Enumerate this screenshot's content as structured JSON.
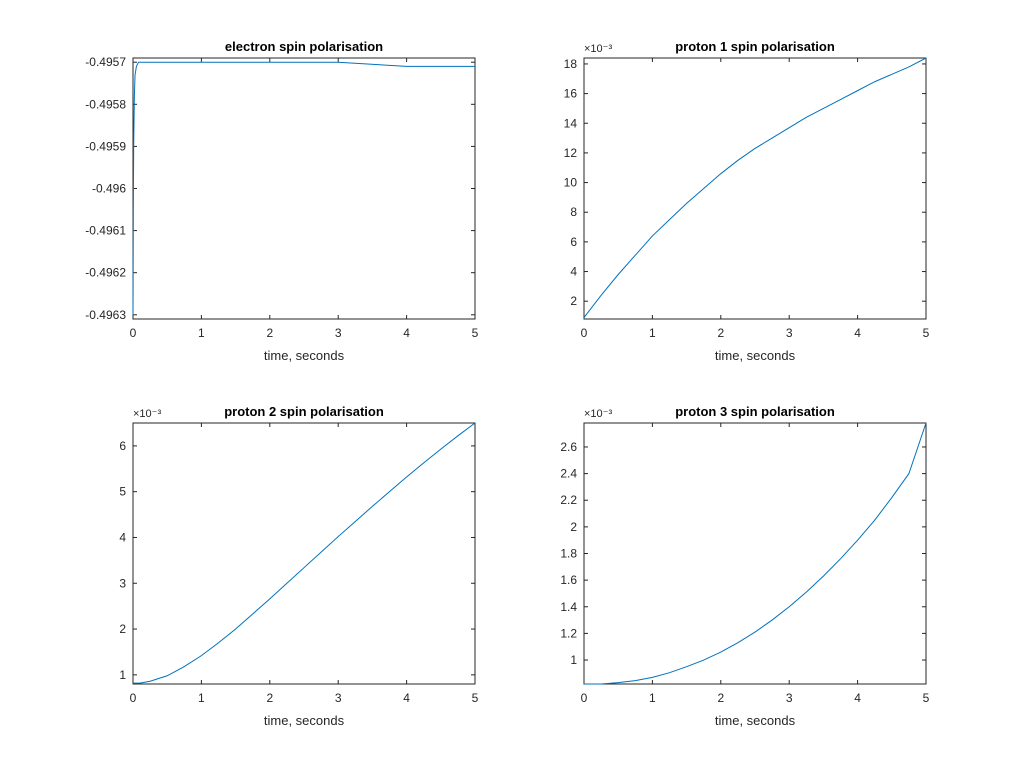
{
  "chart_data": [
    {
      "type": "line",
      "title": "electron spin polarisation",
      "xlabel": "time, seconds",
      "ylabel": "",
      "xlim": [
        0,
        5
      ],
      "ylim": [
        -0.49631,
        -0.49569
      ],
      "xticks": [
        0,
        1,
        2,
        3,
        4,
        5
      ],
      "xtick_labels": [
        "0",
        "1",
        "2",
        "3",
        "4",
        "5"
      ],
      "yticks": [
        -0.4963,
        -0.4962,
        -0.4961,
        -0.496,
        -0.4959,
        -0.4958,
        -0.4957
      ],
      "ytick_labels": [
        "-0.4963",
        "-0.4962",
        "-0.4961",
        "-0.496",
        "-0.4959",
        "-0.4958",
        "-0.4957"
      ],
      "exponent_label": "",
      "line_color": "#0072BD",
      "series": [
        {
          "x": [
            0,
            0.005,
            0.01,
            0.02,
            0.03,
            0.05,
            0.08,
            0.12,
            0.2,
            0.5,
            1,
            2,
            3,
            4,
            5
          ],
          "y": [
            -0.4963,
            -0.49605,
            -0.4959,
            -0.49578,
            -0.49573,
            -0.49571,
            -0.4957,
            -0.4957,
            -0.4957,
            -0.4957,
            -0.4957,
            -0.4957,
            -0.4957,
            -0.49571,
            -0.49571
          ]
        }
      ]
    },
    {
      "type": "line",
      "title": "proton 1 spin polarisation",
      "xlabel": "time, seconds",
      "ylabel": "",
      "xlim": [
        0,
        5
      ],
      "ylim": [
        0.8,
        18.4
      ],
      "xticks": [
        0,
        1,
        2,
        3,
        4,
        5
      ],
      "xtick_labels": [
        "0",
        "1",
        "2",
        "3",
        "4",
        "5"
      ],
      "yticks": [
        2,
        4,
        6,
        8,
        10,
        12,
        14,
        16,
        18
      ],
      "ytick_labels": [
        "2",
        "4",
        "6",
        "8",
        "10",
        "12",
        "14",
        "16",
        "18"
      ],
      "exponent_label": "×10⁻³",
      "line_color": "#0072BD",
      "series": [
        {
          "x": [
            0,
            0.25,
            0.5,
            0.75,
            1,
            1.25,
            1.5,
            1.75,
            2,
            2.25,
            2.5,
            2.75,
            3,
            3.25,
            3.5,
            3.75,
            4,
            4.25,
            4.5,
            4.75,
            5
          ],
          "y": [
            0.9,
            2.4,
            3.8,
            5.1,
            6.4,
            7.5,
            8.6,
            9.6,
            10.6,
            11.5,
            12.3,
            13.0,
            13.7,
            14.4,
            15.0,
            15.6,
            16.2,
            16.8,
            17.3,
            17.8,
            18.4
          ]
        }
      ]
    },
    {
      "type": "line",
      "title": "proton 2 spin polarisation",
      "xlabel": "time, seconds",
      "ylabel": "",
      "xlim": [
        0,
        5
      ],
      "ylim": [
        0.8,
        6.5
      ],
      "xticks": [
        0,
        1,
        2,
        3,
        4,
        5
      ],
      "xtick_labels": [
        "0",
        "1",
        "2",
        "3",
        "4",
        "5"
      ],
      "yticks": [
        1,
        2,
        3,
        4,
        5,
        6
      ],
      "ytick_labels": [
        "1",
        "2",
        "3",
        "4",
        "5",
        "6"
      ],
      "exponent_label": "×10⁻³",
      "line_color": "#0072BD",
      "series": [
        {
          "x": [
            0,
            0.1,
            0.25,
            0.5,
            0.75,
            1,
            1.25,
            1.5,
            1.75,
            2,
            2.25,
            2.5,
            2.75,
            3,
            3.25,
            3.5,
            3.75,
            4,
            4.25,
            4.5,
            4.75,
            5
          ],
          "y": [
            0.82,
            0.82,
            0.86,
            0.98,
            1.18,
            1.42,
            1.7,
            2.0,
            2.33,
            2.66,
            3.0,
            3.34,
            3.68,
            4.02,
            4.35,
            4.68,
            5.0,
            5.32,
            5.63,
            5.93,
            6.22,
            6.5
          ]
        }
      ]
    },
    {
      "type": "line",
      "title": "proton 3 spin polarisation",
      "xlabel": "time, seconds",
      "ylabel": "",
      "xlim": [
        0,
        5
      ],
      "ylim": [
        0.82,
        2.78
      ],
      "xticks": [
        0,
        1,
        2,
        3,
        4,
        5
      ],
      "xtick_labels": [
        "0",
        "1",
        "2",
        "3",
        "4",
        "5"
      ],
      "yticks": [
        1,
        1.2,
        1.4,
        1.6,
        1.8,
        2,
        2.2,
        2.4,
        2.6
      ],
      "ytick_labels": [
        "1",
        "1.2",
        "1.4",
        "1.6",
        "1.8",
        "2",
        "2.2",
        "2.4",
        "2.6"
      ],
      "exponent_label": "×10⁻³",
      "line_color": "#0072BD",
      "series": [
        {
          "x": [
            0,
            0.25,
            0.5,
            0.75,
            1,
            1.25,
            1.5,
            1.75,
            2,
            2.25,
            2.5,
            2.75,
            3,
            3.25,
            3.5,
            3.75,
            4,
            4.25,
            4.5,
            4.75,
            5
          ],
          "y": [
            0.82,
            0.82,
            0.83,
            0.845,
            0.87,
            0.905,
            0.95,
            1.0,
            1.06,
            1.13,
            1.21,
            1.3,
            1.4,
            1.51,
            1.63,
            1.76,
            1.9,
            2.05,
            2.22,
            2.4,
            2.78
          ]
        }
      ]
    }
  ]
}
